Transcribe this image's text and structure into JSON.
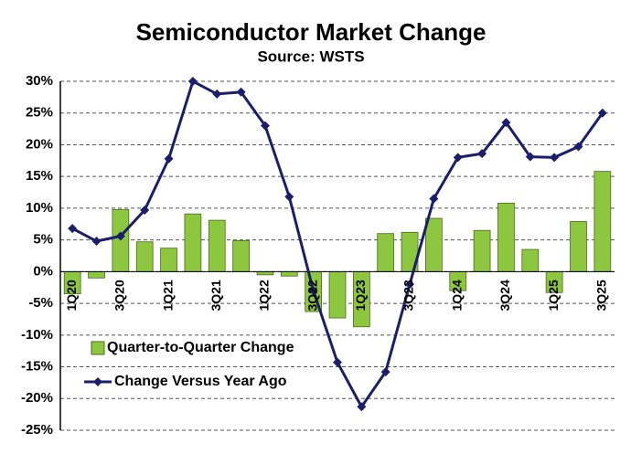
{
  "chart_data": {
    "type": "bar-line",
    "title": "Semiconductor Market Change",
    "subtitle": "Source: WSTS",
    "categories": [
      "1Q20",
      null,
      "3Q20",
      null,
      "1Q21",
      null,
      "3Q21",
      null,
      "1Q22",
      null,
      "3Q22",
      null,
      "1Q23",
      null,
      "3Q23",
      null,
      "1Q24",
      null,
      "3Q24",
      null,
      "1Q25",
      null,
      "3Q25"
    ],
    "series": [
      {
        "name": "Quarter-to-Quarter Change",
        "kind": "bar",
        "color": "#8dc63f",
        "values": [
          -3.5,
          -1,
          9.8,
          4.7,
          3.7,
          9.1,
          8.1,
          4.9,
          -0.5,
          -0.7,
          -6.3,
          -7.3,
          -8.7,
          6.0,
          6.2,
          8.4,
          -3.0,
          6.5,
          10.8,
          3.5,
          -3.3,
          7.9,
          15.8
        ]
      },
      {
        "name": "Change Versus Year Ago",
        "kind": "line",
        "color": "#1b1f6b",
        "values": [
          6.8,
          4.8,
          5.6,
          9.7,
          17.8,
          30.0,
          28.0,
          28.3,
          23.0,
          11.8,
          -3.0,
          -14.3,
          -21.3,
          -15.8,
          -2.0,
          11.5,
          18.0,
          18.6,
          23.5,
          18.1,
          18.0,
          19.7,
          25.0
        ]
      }
    ],
    "ylim": [
      -25,
      30
    ],
    "yticks": [
      {
        "value": -25,
        "label": "-25%"
      },
      {
        "value": -20,
        "label": "-20%"
      },
      {
        "value": -15,
        "label": "-15%"
      },
      {
        "value": -10,
        "label": "-10%"
      },
      {
        "value": -5,
        "label": "-5%"
      },
      {
        "value": 0,
        "label": "0%"
      },
      {
        "value": 5,
        "label": "5%"
      },
      {
        "value": 10,
        "label": "10%"
      },
      {
        "value": 15,
        "label": "15%"
      },
      {
        "value": 20,
        "label": "20%"
      },
      {
        "value": 25,
        "label": "25%"
      },
      {
        "value": 30,
        "label": "30%"
      }
    ],
    "grid": true
  }
}
